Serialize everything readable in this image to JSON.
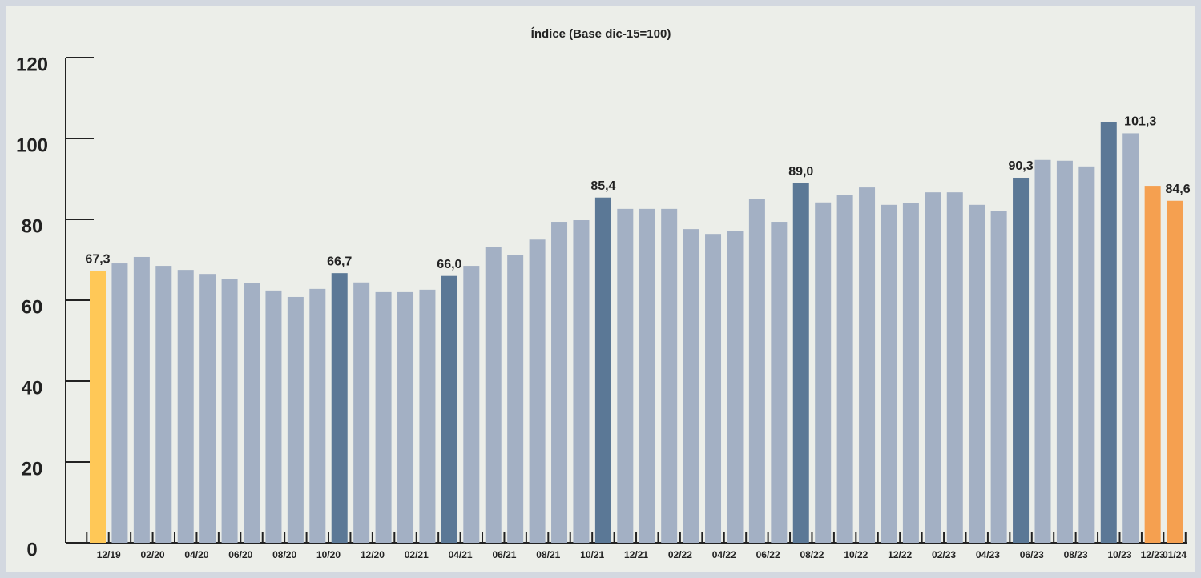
{
  "chart_data": {
    "type": "bar",
    "title": "Índice (Base dic-15=100)",
    "categories": [
      "12/19",
      null,
      "02/20",
      null,
      "04/20",
      null,
      "06/20",
      null,
      "08/20",
      null,
      "10/20",
      null,
      "12/20",
      null,
      "02/21",
      null,
      "04/21",
      null,
      "06/21",
      null,
      "08/21",
      null,
      "10/21",
      null,
      "12/21",
      null,
      "02/22",
      null,
      "04/22",
      null,
      "06/22",
      null,
      "08/22",
      null,
      "10/22",
      null,
      "12/22",
      null,
      "02/23",
      null,
      "04/23",
      null,
      "06/23",
      null,
      "08/23",
      null,
      "10/23",
      null,
      "12/23",
      "01/24"
    ],
    "values": [
      67.3,
      69.1,
      70.7,
      68.5,
      67.5,
      66.5,
      65.3,
      64.2,
      62.4,
      60.8,
      62.8,
      66.7,
      64.4,
      62.0,
      62.0,
      62.6,
      66.0,
      68.5,
      73.1,
      71.1,
      75.0,
      79.4,
      79.8,
      85.4,
      82.6,
      82.6,
      82.6,
      77.6,
      76.4,
      77.2,
      85.1,
      79.4,
      89.0,
      84.2,
      86.1,
      87.9,
      83.6,
      84.0,
      86.7,
      86.7,
      83.6,
      82.0,
      90.3,
      94.7,
      94.5,
      93.1,
      104.0,
      101.3,
      88.3,
      84.6
    ],
    "value_labels": [
      "67,3",
      null,
      null,
      null,
      null,
      null,
      null,
      null,
      null,
      null,
      null,
      "66,7",
      null,
      null,
      null,
      null,
      "66,0",
      null,
      null,
      null,
      null,
      null,
      null,
      "85,4",
      null,
      null,
      null,
      null,
      null,
      null,
      null,
      null,
      "89,0",
      null,
      null,
      null,
      null,
      null,
      null,
      null,
      null,
      null,
      "90,3",
      null,
      null,
      null,
      null,
      "101,3",
      null,
      "84,6"
    ],
    "colors": [
      "#ffc857",
      "#a3b0c4",
      "#a3b0c4",
      "#a3b0c4",
      "#a3b0c4",
      "#a3b0c4",
      "#a3b0c4",
      "#a3b0c4",
      "#a3b0c4",
      "#a3b0c4",
      "#a3b0c4",
      "#5b7896",
      "#a3b0c4",
      "#a3b0c4",
      "#a3b0c4",
      "#a3b0c4",
      "#5b7896",
      "#a3b0c4",
      "#a3b0c4",
      "#a3b0c4",
      "#a3b0c4",
      "#a3b0c4",
      "#a3b0c4",
      "#5b7896",
      "#a3b0c4",
      "#a3b0c4",
      "#a3b0c4",
      "#a3b0c4",
      "#a3b0c4",
      "#a3b0c4",
      "#a3b0c4",
      "#a3b0c4",
      "#5b7896",
      "#a3b0c4",
      "#a3b0c4",
      "#a3b0c4",
      "#a3b0c4",
      "#a3b0c4",
      "#a3b0c4",
      "#a3b0c4",
      "#a3b0c4",
      "#a3b0c4",
      "#5b7896",
      "#a3b0c4",
      "#a3b0c4",
      "#a3b0c4",
      "#5b7896",
      "#a3b0c4",
      "#f5a050",
      "#f5a050"
    ],
    "ylim": [
      0,
      120
    ],
    "yticks": [
      0,
      20,
      40,
      60,
      80,
      100,
      120
    ]
  }
}
